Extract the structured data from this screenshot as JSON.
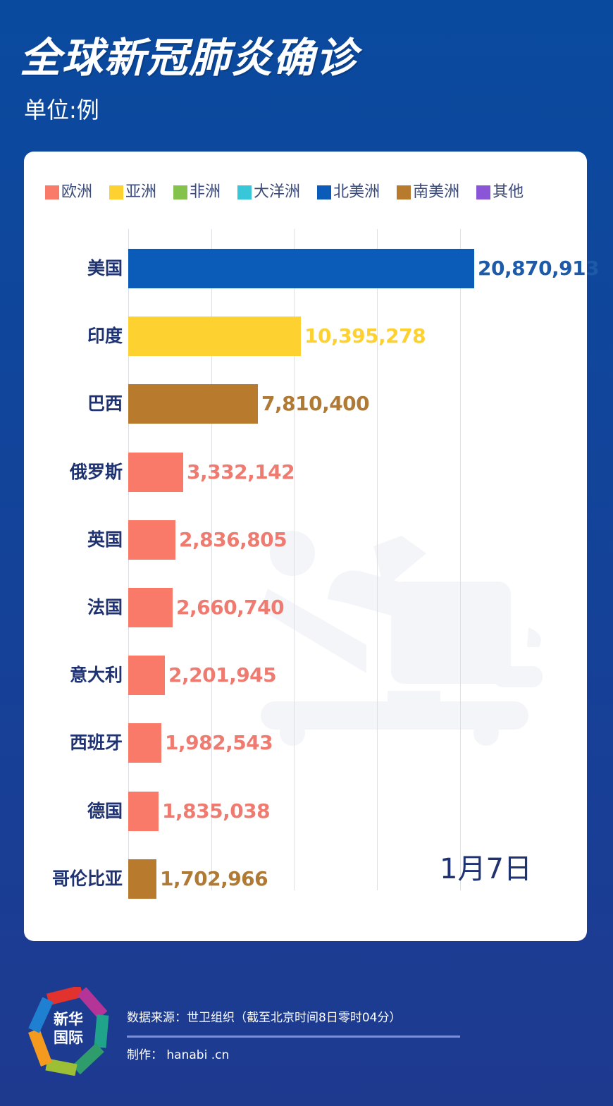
{
  "header": {
    "title": "全球新冠肺炎确诊",
    "unit": "单位:例"
  },
  "legend": [
    {
      "label": "欧洲",
      "color": "#fa7a6a"
    },
    {
      "label": "亚洲",
      "color": "#fdd12f"
    },
    {
      "label": "非洲",
      "color": "#84c24b"
    },
    {
      "label": "大洋洲",
      "color": "#38c6d9"
    },
    {
      "label": "北美洲",
      "color": "#0a5cb8"
    },
    {
      "label": "南美洲",
      "color": "#b87a2c"
    },
    {
      "label": "其他",
      "color": "#8a55d6"
    }
  ],
  "date_label": "1月7日",
  "footer": {
    "logo_text_line1": "新华",
    "logo_text_line2": "国际",
    "source": "数据来源：世卫组织（截至北京时间8日零时04分）",
    "credit": "制作： hanabi .cn"
  },
  "chart_data": {
    "type": "bar",
    "orientation": "horizontal",
    "title": "全球新冠肺炎确诊",
    "subtitle": "单位:例",
    "xlabel": "",
    "ylabel": "",
    "xlim": [
      0,
      25000000
    ],
    "grid": true,
    "gridline_values": [
      0,
      5000000,
      10000000,
      15000000,
      20000000
    ],
    "legend_position": "top",
    "annotation": "1月7日",
    "categories": [
      "美国",
      "印度",
      "巴西",
      "俄罗斯",
      "英国",
      "法国",
      "意大利",
      "西班牙",
      "德国",
      "哥伦比亚"
    ],
    "values": [
      20870913,
      10395278,
      7810400,
      3332142,
      2836805,
      2660740,
      2201945,
      1982543,
      1835038,
      1702966
    ],
    "value_labels": [
      "20,870,913",
      "10,395,278",
      "7,810,400",
      "3,332,142",
      "2,836,805",
      "2,660,740",
      "2,201,945",
      "1,982,543",
      "1,835,038",
      "1,702,966"
    ],
    "continents": [
      "北美洲",
      "亚洲",
      "南美洲",
      "欧洲",
      "欧洲",
      "欧洲",
      "欧洲",
      "欧洲",
      "欧洲",
      "南美洲"
    ],
    "bar_colors": [
      "#0a5cb8",
      "#fdd12f",
      "#b87a2c",
      "#fa7a6a",
      "#fa7a6a",
      "#fa7a6a",
      "#fa7a6a",
      "#fa7a6a",
      "#fa7a6a",
      "#b87a2c"
    ],
    "label_colors": [
      "#1d5aa8",
      "#fdd12f",
      "#b07a35",
      "#ef7b70",
      "#ef7b70",
      "#ef7b70",
      "#ef7b70",
      "#ef7b70",
      "#ef7b70",
      "#b07a35"
    ]
  }
}
